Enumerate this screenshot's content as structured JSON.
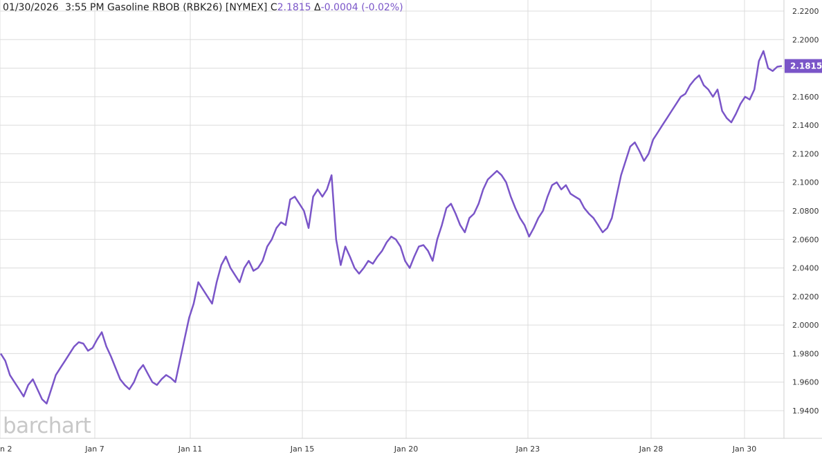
{
  "header": {
    "date": "01/30/2026",
    "time": "3:55 PM",
    "instrument": "Gasoline RBOB (RBK26) [NYMEX]",
    "close_prefix": "C",
    "close_value": "2.1815",
    "change_prefix": "Δ",
    "change_value": "-0.0004 (-0.02%)"
  },
  "watermark": "barchart",
  "colors": {
    "line": "#7a55c8",
    "grid": "#dcdcdc",
    "label_bg": "#7a55c8"
  },
  "chart_data": {
    "type": "line",
    "title": "Gasoline RBOB (RBK26) [NYMEX]",
    "ylim": [
      1.92,
      2.23
    ],
    "y_ticks": [
      "2.2200",
      "2.2000",
      "2.1800",
      "2.1600",
      "2.1400",
      "2.1200",
      "2.1000",
      "2.0800",
      "2.0600",
      "2.0400",
      "2.0200",
      "2.0000",
      "1.9800",
      "1.9600",
      "1.9400"
    ],
    "x_ticks": [
      "n 2",
      "Jan 7",
      "Jan 11",
      "Jan 15",
      "Jan 20",
      "Jan 23",
      "Jan 28",
      "Jan 30"
    ],
    "last_price_label": "2.1815",
    "grid": true,
    "series": [
      {
        "values": [
          1.98,
          1.975,
          1.965,
          1.96,
          1.955,
          1.95,
          1.958,
          1.962,
          1.955,
          1.948,
          1.945,
          1.955,
          1.965,
          1.97,
          1.975,
          1.98,
          1.985,
          1.988,
          1.987,
          1.982,
          1.984,
          1.99,
          1.995,
          1.985,
          1.978,
          1.97,
          1.962,
          1.958,
          1.955,
          1.96,
          1.968,
          1.972,
          1.966,
          1.96,
          1.958,
          1.962,
          1.965,
          1.963,
          1.96,
          1.975,
          1.99,
          2.005,
          2.015,
          2.03,
          2.025,
          2.02,
          2.015,
          2.03,
          2.042,
          2.048,
          2.04,
          2.035,
          2.03,
          2.04,
          2.045,
          2.038,
          2.04,
          2.045,
          2.055,
          2.06,
          2.068,
          2.072,
          2.07,
          2.088,
          2.09,
          2.085,
          2.08,
          2.068,
          2.09,
          2.095,
          2.09,
          2.095,
          2.105,
          2.06,
          2.042,
          2.055,
          2.048,
          2.04,
          2.036,
          2.04,
          2.045,
          2.043,
          2.048,
          2.052,
          2.058,
          2.062,
          2.06,
          2.055,
          2.045,
          2.04,
          2.048,
          2.055,
          2.056,
          2.052,
          2.045,
          2.06,
          2.07,
          2.082,
          2.085,
          2.078,
          2.07,
          2.065,
          2.075,
          2.078,
          2.085,
          2.095,
          2.102,
          2.105,
          2.108,
          2.105,
          2.1,
          2.09,
          2.082,
          2.075,
          2.07,
          2.062,
          2.068,
          2.075,
          2.08,
          2.09,
          2.098,
          2.1,
          2.095,
          2.098,
          2.092,
          2.09,
          2.088,
          2.082,
          2.078,
          2.075,
          2.07,
          2.065,
          2.068,
          2.075,
          2.09,
          2.105,
          2.115,
          2.125,
          2.128,
          2.122,
          2.115,
          2.12,
          2.13,
          2.135,
          2.14,
          2.145,
          2.15,
          2.155,
          2.16,
          2.162,
          2.168,
          2.172,
          2.175,
          2.168,
          2.165,
          2.16,
          2.165,
          2.15,
          2.145,
          2.142,
          2.148,
          2.155,
          2.16,
          2.158,
          2.165,
          2.185,
          2.192,
          2.18,
          2.178,
          2.181,
          2.1815
        ]
      }
    ]
  }
}
